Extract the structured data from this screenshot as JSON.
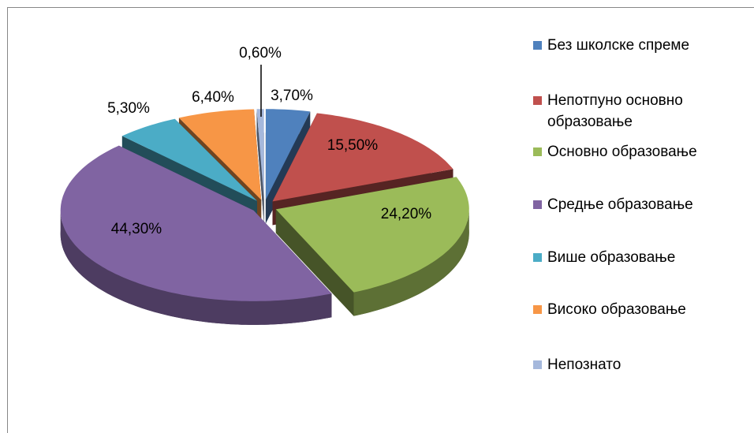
{
  "chart_data": {
    "type": "pie3d",
    "categories": [
      "Без школске спреме",
      "Непотпуно основно образовање",
      "Основно образовање",
      "Средње образовање",
      "Више образовање",
      "Високо образовање",
      "Непознато"
    ],
    "values": [
      3.7,
      15.5,
      24.2,
      44.3,
      5.3,
      6.4,
      0.6
    ],
    "value_labels": [
      "3,70%",
      "15,50%",
      "24,20%",
      "44,30%",
      "5,30%",
      "6,40%",
      "0,60%"
    ],
    "colors": [
      "#4f81bd",
      "#c0504d",
      "#9bbb59",
      "#8064a2",
      "#4bacc6",
      "#f79646",
      "#a5b8dc"
    ],
    "legend": "right"
  }
}
